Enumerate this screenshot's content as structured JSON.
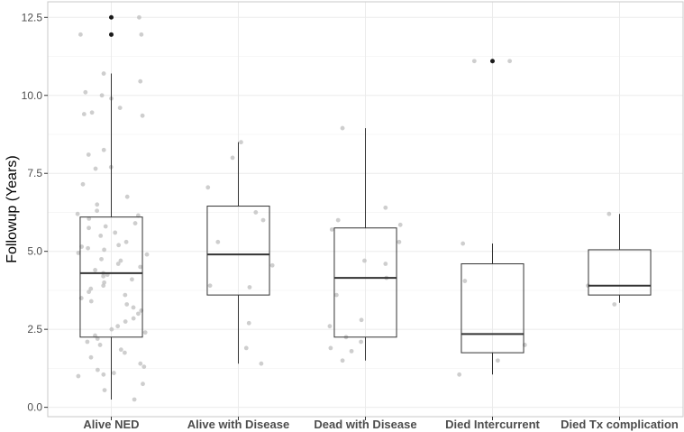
{
  "chart_data": {
    "type": "boxplot",
    "title": "",
    "xlabel": "",
    "ylabel": "Followup (Years)",
    "ylim": [
      -0.3,
      13.0
    ],
    "yticks": [
      "0.0",
      "2.5",
      "5.0",
      "7.5",
      "10.0",
      "12.5"
    ],
    "ytick_values": [
      0.0,
      2.5,
      5.0,
      7.5,
      10.0,
      12.5
    ],
    "grid": true,
    "legend": "none",
    "colors": {
      "box_outline": "#333333",
      "jitter": "#bdbdbd",
      "outlier": "#1a1a1a",
      "grid": "#ebebeb",
      "panel_border": "#c8c8c8"
    },
    "categories": [
      "Alive NED",
      "Alive with Disease",
      "Dead with Disease",
      "Died Intercurrent",
      "Died Tx complication"
    ],
    "boxes": [
      {
        "whisker_low": 0.25,
        "q1": 2.25,
        "median": 4.3,
        "q3": 6.1,
        "whisker_high": 10.7,
        "outliers": [
          12.5,
          11.95
        ]
      },
      {
        "whisker_low": 1.4,
        "q1": 3.6,
        "median": 4.9,
        "q3": 6.45,
        "whisker_high": 8.5,
        "outliers": []
      },
      {
        "whisker_low": 1.5,
        "q1": 2.25,
        "median": 4.15,
        "q3": 5.75,
        "whisker_high": 8.95,
        "outliers": []
      },
      {
        "whisker_low": 1.05,
        "q1": 1.75,
        "median": 2.35,
        "q3": 4.6,
        "whisker_high": 5.25,
        "outliers": [
          11.1
        ]
      },
      {
        "whisker_low": 3.35,
        "q1": 3.6,
        "median": 3.9,
        "q3": 5.05,
        "whisker_high": 6.2,
        "outliers": []
      }
    ],
    "points": [
      {
        "group": 0,
        "values": [
          12.5,
          11.95,
          11.95,
          10.7,
          10.45,
          10.1,
          10.0,
          9.9,
          9.6,
          9.45,
          9.4,
          9.35,
          8.25,
          8.1,
          7.7,
          7.65,
          7.15,
          6.75,
          6.5,
          6.3,
          6.2,
          6.15,
          6.05,
          5.9,
          5.8,
          5.75,
          5.6,
          5.5,
          5.3,
          5.2,
          5.15,
          5.1,
          5.05,
          4.95,
          4.9,
          4.75,
          4.7,
          4.6,
          4.5,
          4.4,
          4.3,
          4.25,
          4.2,
          4.1,
          4.0,
          3.9,
          3.8,
          3.7,
          3.6,
          3.5,
          3.4,
          3.3,
          3.2,
          3.1,
          3.0,
          2.85,
          2.75,
          2.6,
          2.5,
          2.4,
          2.3,
          2.2,
          2.1,
          2.0,
          1.85,
          1.75,
          1.6,
          1.4,
          1.3,
          1.2,
          1.1,
          1.05,
          1.0,
          0.75,
          0.55,
          0.25
        ]
      },
      {
        "group": 1,
        "values": [
          8.5,
          8.0,
          7.05,
          6.25,
          6.0,
          5.3,
          4.55,
          3.9,
          3.85,
          2.7,
          1.9,
          1.4
        ]
      },
      {
        "group": 2,
        "values": [
          8.95,
          6.4,
          6.0,
          5.85,
          5.7,
          5.3,
          4.7,
          4.6,
          4.15,
          3.6,
          2.8,
          2.6,
          2.25,
          2.1,
          1.9,
          1.8,
          1.5
        ]
      },
      {
        "group": 3,
        "values": [
          11.1,
          11.1,
          5.25,
          4.05,
          2.0,
          1.5,
          1.05
        ]
      },
      {
        "group": 4,
        "values": [
          6.2,
          3.9,
          3.3
        ]
      }
    ]
  }
}
